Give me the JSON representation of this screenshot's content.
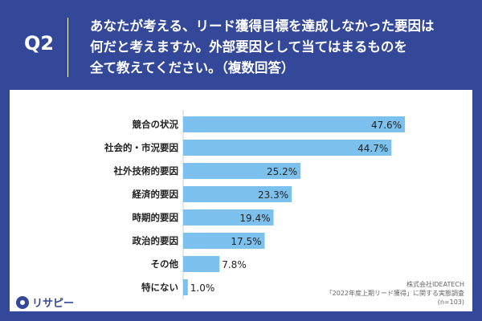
{
  "header": {
    "q_label": "Q2",
    "question_lines": [
      "あなたが考える、リード獲得目標を達成しなかった要因は",
      "何だと考えますか。外部要因として当てはまるものを",
      "全て教えてください。（複数回答）"
    ]
  },
  "chart_data": {
    "type": "bar",
    "orientation": "horizontal",
    "categories": [
      "競合の状況",
      "社会的・市況要因",
      "社外技術的要因",
      "経済的要因",
      "時期的要因",
      "政治的要因",
      "その他",
      "特にない"
    ],
    "values": [
      47.6,
      44.7,
      25.2,
      23.3,
      19.4,
      17.5,
      7.8,
      1.0
    ],
    "value_labels": [
      "47.6%",
      "44.7%",
      "25.2%",
      "23.3%",
      "19.4%",
      "17.5%",
      "7.8%",
      "1.0%"
    ],
    "unit": "%",
    "xlim": [
      0,
      50
    ],
    "bar_color": "#7cc0ee",
    "grid": false,
    "title": "",
    "xlabel": "",
    "ylabel": ""
  },
  "source": {
    "lines": [
      "株式会社IDEATECH",
      "「2022年度上期リード獲得」に関する実態調査",
      "(n=103)"
    ]
  },
  "logo": {
    "text": "リサピー",
    "icon": "pin-icon"
  },
  "colors": {
    "background": "#34489a",
    "panel": "#ffffff",
    "bar": "#7cc0ee"
  }
}
